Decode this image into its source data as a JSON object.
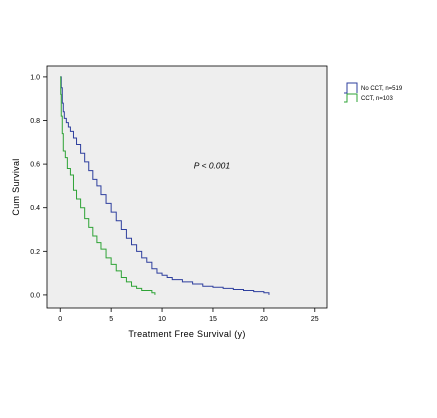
{
  "chart_data": {
    "type": "line",
    "subtype": "kaplan-meier step",
    "title": "",
    "xlabel": "Treatment Free Survival (y)",
    "ylabel": "Cum Survival",
    "xlim": [
      -1.3,
      26.2
    ],
    "ylim": [
      -0.06,
      1.05
    ],
    "x_ticks": [
      0,
      5,
      10,
      15,
      20,
      25
    ],
    "y_ticks": [
      0.0,
      0.2,
      0.4,
      0.6,
      0.8,
      1.0
    ],
    "y_tick_labels": [
      "0.0",
      "0.2",
      "0.4",
      "0.6",
      "0.8",
      "1.0"
    ],
    "grid": false,
    "plot_background": "#eeeeee",
    "legend_position": "right",
    "annotation": "P < 0.001",
    "annotation_at": {
      "x": 14.9,
      "y": 0.58
    },
    "series": [
      {
        "name": "No CCT, n=519",
        "color": "#2e3f9e",
        "x": [
          0,
          0.1,
          0.2,
          0.3,
          0.4,
          0.6,
          0.8,
          1.0,
          1.3,
          1.6,
          2.0,
          2.4,
          2.8,
          3.2,
          3.6,
          4.0,
          4.5,
          5.0,
          5.5,
          6.0,
          6.5,
          7.0,
          7.5,
          8.0,
          8.5,
          9.0,
          9.5,
          10.0,
          10.5,
          11.0,
          12.0,
          13.0,
          14.0,
          15.0,
          16.0,
          17.0,
          18.0,
          19.0,
          20.0,
          20.5
        ],
        "y": [
          1.0,
          0.95,
          0.88,
          0.84,
          0.81,
          0.79,
          0.77,
          0.75,
          0.72,
          0.69,
          0.65,
          0.61,
          0.57,
          0.53,
          0.5,
          0.46,
          0.42,
          0.38,
          0.34,
          0.3,
          0.26,
          0.23,
          0.2,
          0.17,
          0.15,
          0.12,
          0.1,
          0.09,
          0.08,
          0.07,
          0.06,
          0.05,
          0.04,
          0.035,
          0.03,
          0.025,
          0.02,
          0.015,
          0.01,
          0.0
        ]
      },
      {
        "name": "CCT, n=103",
        "color": "#2ea336",
        "x": [
          0,
          0.05,
          0.1,
          0.2,
          0.3,
          0.5,
          0.7,
          1.0,
          1.3,
          1.6,
          2.0,
          2.4,
          2.8,
          3.2,
          3.6,
          4.0,
          4.5,
          5.0,
          5.5,
          6.0,
          6.5,
          7.0,
          7.5,
          8.0,
          8.5,
          9.0,
          9.3
        ],
        "y": [
          1.0,
          0.92,
          0.82,
          0.74,
          0.66,
          0.63,
          0.58,
          0.55,
          0.48,
          0.44,
          0.4,
          0.35,
          0.31,
          0.27,
          0.24,
          0.21,
          0.17,
          0.14,
          0.11,
          0.08,
          0.06,
          0.04,
          0.03,
          0.02,
          0.02,
          0.01,
          0.0
        ]
      }
    ]
  }
}
